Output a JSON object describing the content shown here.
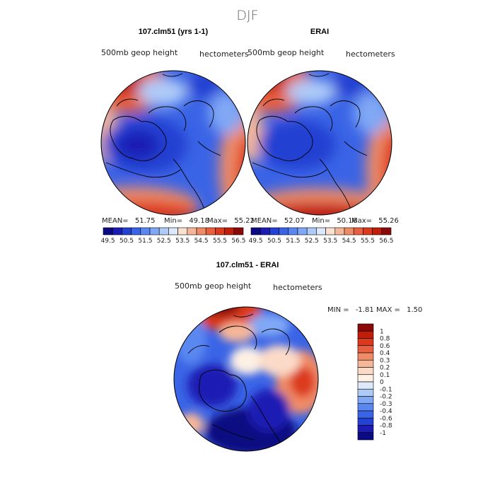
{
  "figure": {
    "super_title": "DJF"
  },
  "panels": [
    {
      "id": "model",
      "title": "107.clm51 (yrs 1-1)",
      "left_label": "500mb geop height",
      "right_label": "hectometers",
      "stats": {
        "mean_label": "MEAN=",
        "mean": "51.75",
        "min_label": "Min=",
        "min": "49.18",
        "max_label": "Max=",
        "max": "55.22"
      }
    },
    {
      "id": "obs",
      "title": "ERAI",
      "left_label": "500mb geop height",
      "right_label": "hectometers",
      "stats": {
        "mean_label": "MEAN=",
        "mean": "52.07",
        "min_label": "Min=",
        "min": "50.16",
        "max_label": "Max=",
        "max": "55.26"
      }
    },
    {
      "id": "diff",
      "title": "107.clm51 - ERAI",
      "left_label": "500mb geop height",
      "right_label": "hectometers",
      "stats": {
        "min_label": "MIN =",
        "min": "-1.81",
        "max_label": "MAX =",
        "max": "1.50"
      }
    }
  ],
  "colors": {
    "field_scale": [
      "#0a0a82",
      "#1c1cb4",
      "#2341d2",
      "#3a64e6",
      "#5a88f0",
      "#80a8f5",
      "#aecbf8",
      "#dde8fb",
      "#fbe2d0",
      "#f5b79a",
      "#ef8c68",
      "#e86040",
      "#dc3a1e",
      "#c01d0a",
      "#8a0a0a"
    ],
    "diff_scale": [
      "#0a0a82",
      "#1c1cb4",
      "#2341d2",
      "#3a64e6",
      "#5a88f0",
      "#80a8f5",
      "#aecbf8",
      "#dde8fb",
      "#fdf0e4",
      "#fbdac8",
      "#f5b79a",
      "#ef8c68",
      "#e86040",
      "#dc3a1e",
      "#c01d0a",
      "#8a0a0a"
    ],
    "coastline": "#000000"
  },
  "chart_data": [
    {
      "type": "heatmap",
      "projection": "polar-stereographic",
      "title": "107.clm51 (yrs 1-1)",
      "variable": "500mb geop height",
      "units": "hectometers",
      "mean": 51.75,
      "min": 49.18,
      "max": 55.22,
      "colorbar_levels": [
        49.5,
        50,
        50.5,
        51,
        51.5,
        52,
        52.5,
        53,
        53.5,
        54,
        54.5,
        55,
        55.5,
        56,
        56.5
      ],
      "colorbar_tick_labels": [
        "49.5",
        "50.5",
        "51.5",
        "52.5",
        "53.5",
        "54.5",
        "55.5",
        "56.5"
      ]
    },
    {
      "type": "heatmap",
      "projection": "polar-stereographic",
      "title": "ERAI",
      "variable": "500mb geop height",
      "units": "hectometers",
      "mean": 52.07,
      "min": 50.16,
      "max": 55.26,
      "colorbar_levels": [
        49.5,
        50,
        50.5,
        51,
        51.5,
        52,
        52.5,
        53,
        53.5,
        54,
        54.5,
        55,
        55.5,
        56,
        56.5
      ],
      "colorbar_tick_labels": [
        "49.5",
        "50.5",
        "51.5",
        "52.5",
        "53.5",
        "54.5",
        "55.5",
        "56.5"
      ]
    },
    {
      "type": "heatmap",
      "projection": "polar-stereographic",
      "title": "107.clm51 - ERAI",
      "variable": "500mb geop height",
      "units": "hectometers",
      "min": -1.81,
      "max": 1.5,
      "colorbar_levels": [
        -1,
        -0.8,
        -0.6,
        -0.4,
        -0.3,
        -0.2,
        -0.1,
        0,
        0.1,
        0.2,
        0.3,
        0.4,
        0.6,
        0.8,
        1
      ],
      "colorbar_tick_labels": [
        "1",
        "0.8",
        "0.6",
        "0.4",
        "0.3",
        "0.2",
        "0.1",
        "0",
        "-0.1",
        "-0.2",
        "-0.3",
        "-0.4",
        "-0.6",
        "-0.8",
        "-1"
      ]
    }
  ]
}
